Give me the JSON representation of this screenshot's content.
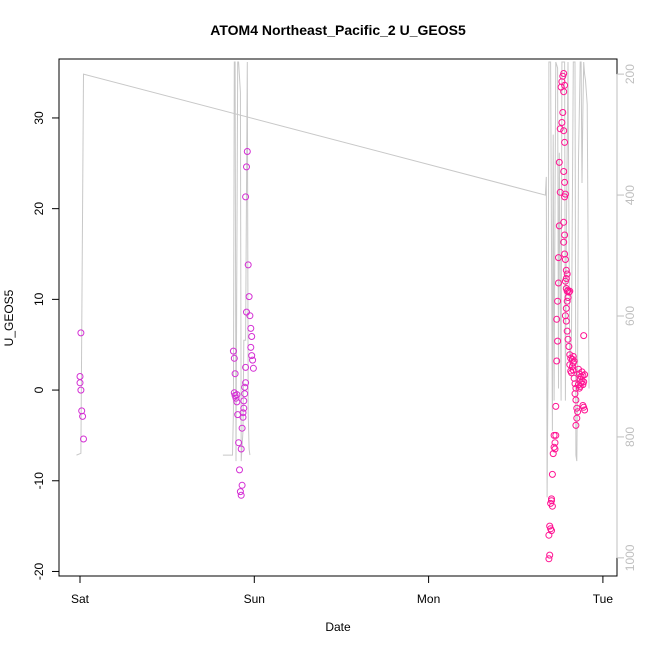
{
  "chart_data": {
    "type": "scatter",
    "title": "ATOM4 Northeast_Pacific_2 U_GEOS5",
    "xlabel": "Date",
    "ylabel": "U_GEOS5",
    "x_unit": "days",
    "x_ticks": [
      {
        "value": 0,
        "label": "Sat"
      },
      {
        "value": 1,
        "label": "Sun"
      },
      {
        "value": 2,
        "label": "Mon"
      },
      {
        "value": 3,
        "label": "Tue"
      }
    ],
    "xlim": [
      -0.1,
      3.1
    ],
    "ylim": [
      -20.5,
      36.5
    ],
    "y_ticks": [
      -20,
      -10,
      0,
      10,
      20,
      30
    ],
    "right_axis": {
      "ticks": [
        200,
        400,
        600,
        800,
        1000
      ],
      "lim": [
        1030,
        175
      ],
      "color": "#bfbfbf"
    },
    "colors": {
      "points": "#ff1493",
      "points_alt": "#d42fd4",
      "pressure_line": "#c8c8c8",
      "axis": "#000000"
    },
    "series": [
      {
        "values": [
          [
            0.005,
            6.3
          ],
          [
            0.0,
            1.5
          ],
          [
            0.0,
            0.8
          ],
          [
            0.005,
            0.0
          ],
          [
            0.01,
            -2.3
          ],
          [
            0.015,
            -2.9
          ],
          [
            0.02,
            -5.4
          ],
          [
            0.88,
            4.3
          ],
          [
            0.885,
            3.5
          ],
          [
            0.89,
            1.8
          ],
          [
            0.885,
            -0.3
          ],
          [
            0.89,
            -0.6
          ],
          [
            0.895,
            -0.9
          ],
          [
            0.9,
            -1.3
          ],
          [
            0.9,
            -0.5
          ],
          [
            0.905,
            -2.7
          ],
          [
            0.91,
            -5.8
          ],
          [
            0.915,
            -8.8
          ],
          [
            0.92,
            -11.2
          ],
          [
            0.925,
            -11.6
          ],
          [
            0.93,
            -10.5
          ],
          [
            0.925,
            -6.5
          ],
          [
            0.93,
            -4.2
          ],
          [
            0.935,
            -3.0
          ],
          [
            0.935,
            -2.5
          ],
          [
            0.94,
            -2.0
          ],
          [
            0.94,
            -1.2
          ],
          [
            0.945,
            -0.4
          ],
          [
            0.945,
            0.3
          ],
          [
            0.95,
            0.8
          ],
          [
            0.95,
            2.5
          ],
          [
            0.955,
            8.6
          ],
          [
            0.95,
            21.3
          ],
          [
            0.955,
            24.6
          ],
          [
            0.96,
            26.3
          ],
          [
            0.965,
            13.8
          ],
          [
            0.97,
            10.3
          ],
          [
            0.975,
            8.2
          ],
          [
            0.98,
            6.8
          ],
          [
            0.985,
            5.9
          ],
          [
            0.98,
            4.7
          ],
          [
            0.985,
            3.8
          ],
          [
            0.99,
            3.3
          ],
          [
            0.995,
            2.4
          ]
        ]
      },
      {
        "values": [
          [
            2.69,
            -18.6
          ],
          [
            2.695,
            -18.2
          ],
          [
            2.69,
            -16.0
          ],
          [
            2.695,
            -15.0
          ],
          [
            2.7,
            -15.3
          ],
          [
            2.705,
            -15.5
          ],
          [
            2.7,
            -12.5
          ],
          [
            2.705,
            -12.0
          ],
          [
            2.71,
            -12.8
          ],
          [
            2.705,
            -12.2
          ],
          [
            2.71,
            -9.3
          ],
          [
            2.715,
            -7.0
          ],
          [
            2.72,
            -6.3
          ],
          [
            2.725,
            -5.8
          ],
          [
            2.72,
            -5.0
          ],
          [
            2.73,
            -5.0
          ],
          [
            2.725,
            -6.5
          ],
          [
            2.73,
            -1.8
          ],
          [
            2.735,
            3.2
          ],
          [
            2.74,
            5.4
          ],
          [
            2.735,
            7.8
          ],
          [
            2.74,
            9.8
          ],
          [
            2.745,
            11.8
          ],
          [
            2.745,
            14.6
          ],
          [
            2.75,
            18.1
          ],
          [
            2.755,
            21.8
          ],
          [
            2.75,
            25.1
          ],
          [
            2.755,
            28.8
          ],
          [
            2.76,
            33.4
          ],
          [
            2.765,
            34.0
          ],
          [
            2.77,
            34.6
          ],
          [
            2.775,
            34.9
          ],
          [
            2.78,
            33.6
          ],
          [
            2.775,
            32.9
          ],
          [
            2.77,
            30.6
          ],
          [
            2.765,
            29.5
          ],
          [
            2.775,
            28.6
          ],
          [
            2.78,
            27.3
          ],
          [
            2.775,
            24.1
          ],
          [
            2.78,
            22.9
          ],
          [
            2.785,
            21.6
          ],
          [
            2.78,
            21.3
          ],
          [
            2.775,
            18.5
          ],
          [
            2.78,
            17.1
          ],
          [
            2.775,
            16.3
          ],
          [
            2.78,
            15.0
          ],
          [
            2.785,
            14.4
          ],
          [
            2.79,
            13.2
          ],
          [
            2.795,
            12.8
          ],
          [
            2.79,
            12.3
          ],
          [
            2.785,
            12.0
          ],
          [
            2.79,
            11.2
          ],
          [
            2.795,
            10.9
          ],
          [
            2.8,
            11.0
          ],
          [
            2.805,
            10.8
          ],
          [
            2.81,
            10.9
          ],
          [
            2.8,
            10.2
          ],
          [
            2.795,
            9.8
          ],
          [
            2.79,
            9.0
          ],
          [
            2.785,
            8.2
          ],
          [
            2.79,
            7.6
          ],
          [
            2.795,
            6.5
          ],
          [
            2.8,
            5.6
          ],
          [
            2.805,
            4.8
          ],
          [
            2.81,
            3.9
          ],
          [
            2.815,
            3.5
          ],
          [
            2.81,
            2.8
          ],
          [
            2.815,
            2.1
          ],
          [
            2.82,
            1.9
          ],
          [
            2.825,
            2.6
          ],
          [
            2.83,
            3.0
          ],
          [
            2.825,
            3.4
          ],
          [
            2.83,
            3.7
          ],
          [
            2.835,
            3.2
          ],
          [
            2.83,
            2.2
          ],
          [
            2.835,
            1.3
          ],
          [
            2.84,
            0.7
          ],
          [
            2.845,
            0.2
          ],
          [
            2.84,
            -0.4
          ],
          [
            2.845,
            -1.1
          ],
          [
            2.85,
            -2.0
          ],
          [
            2.855,
            -2.4
          ],
          [
            2.85,
            -3.1
          ],
          [
            2.845,
            -3.9
          ],
          [
            2.86,
            2.3
          ],
          [
            2.865,
            1.8
          ],
          [
            2.87,
            1.2
          ],
          [
            2.875,
            0.8
          ],
          [
            2.87,
            0.4
          ],
          [
            2.865,
            0.2
          ],
          [
            2.86,
            0.6
          ],
          [
            2.875,
            1.5
          ],
          [
            2.88,
            1.0
          ],
          [
            2.885,
            0.6
          ],
          [
            2.89,
            0.9
          ],
          [
            2.885,
            1.6
          ],
          [
            2.88,
            2.0
          ],
          [
            2.89,
            6.0
          ],
          [
            2.895,
            1.7
          ],
          [
            2.89,
            -1.9
          ],
          [
            2.895,
            -2.2
          ],
          [
            2.885,
            -1.7
          ]
        ]
      }
    ],
    "pressure_line": {
      "right_axis_values": [
        [
          -0.02,
          830
        ],
        [
          0.005,
          827
        ],
        [
          0.02,
          200
        ],
        [
          2.67,
          400
        ],
        [
          2.675,
          370
        ],
        [
          2.68,
          900
        ],
        [
          2.685,
          690
        ],
        [
          2.69,
          180
        ],
        [
          2.7,
          180
        ],
        [
          2.71,
          790
        ],
        [
          2.715,
          300
        ],
        [
          2.72,
          740
        ],
        [
          2.725,
          420
        ],
        [
          2.73,
          180
        ],
        [
          2.74,
          190
        ],
        [
          2.745,
          720
        ],
        [
          2.75,
          330
        ],
        [
          2.76,
          740
        ],
        [
          2.765,
          180
        ],
        [
          2.78,
          180
        ],
        [
          2.785,
          740
        ],
        [
          2.79,
          480
        ],
        [
          2.8,
          180
        ],
        [
          2.81,
          690
        ],
        [
          2.82,
          630
        ],
        [
          2.83,
          180
        ],
        [
          2.84,
          180
        ],
        [
          2.845,
          830
        ],
        [
          2.85,
          840
        ],
        [
          2.855,
          690
        ],
        [
          2.86,
          340
        ],
        [
          2.87,
          180
        ],
        [
          2.875,
          180
        ],
        [
          2.88,
          380
        ],
        [
          2.885,
          260
        ],
        [
          2.89,
          180
        ],
        [
          2.895,
          200
        ],
        [
          2.9,
          210
        ],
        [
          2.91,
          250
        ],
        [
          2.92,
          720
        ]
      ],
      "segment2": [
        [
          0.82,
          830
        ],
        [
          0.875,
          830
        ],
        [
          0.88,
          760
        ],
        [
          0.885,
          180
        ],
        [
          0.89,
          180
        ],
        [
          0.895,
          840
        ],
        [
          0.905,
          180
        ],
        [
          0.91,
          180
        ],
        [
          0.92,
          230
        ],
        [
          0.925,
          840
        ],
        [
          0.935,
          790
        ],
        [
          0.94,
          640
        ],
        [
          0.95,
          640
        ],
        [
          0.96,
          180
        ],
        [
          0.965,
          760
        ],
        [
          0.97,
          820
        ],
        [
          0.975,
          830
        ]
      ]
    }
  }
}
